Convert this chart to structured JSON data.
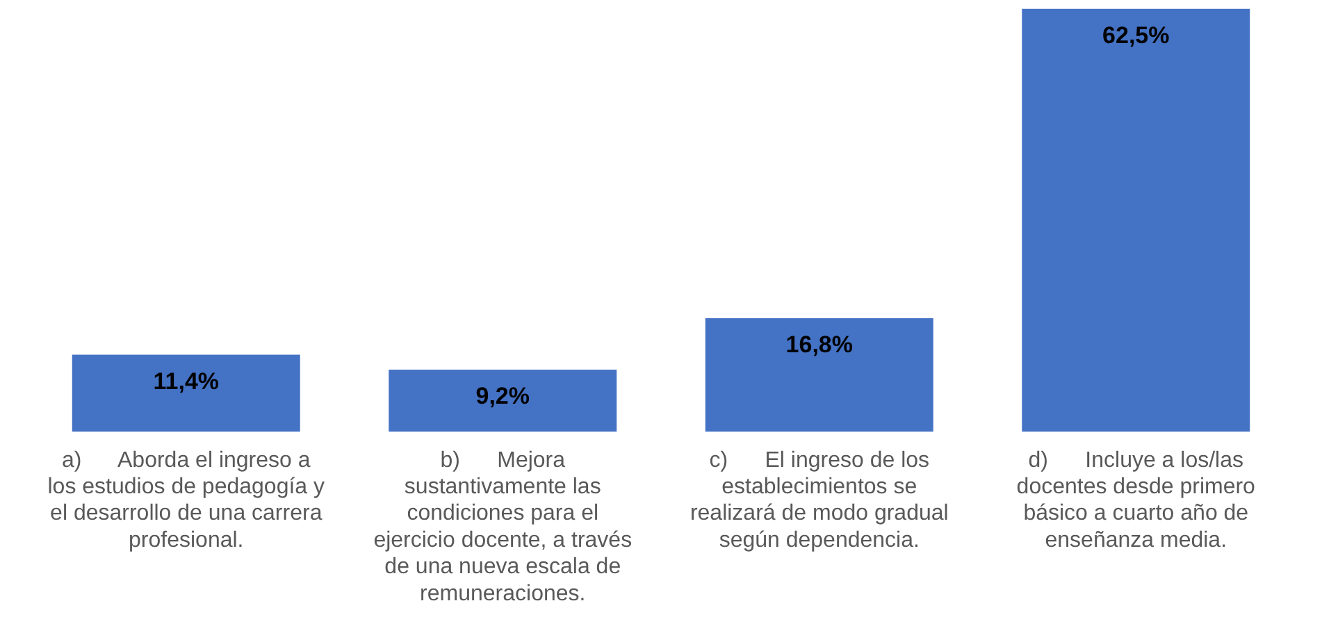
{
  "chart_data": {
    "type": "bar",
    "categories": [
      "a)      Aborda el ingreso a los estudios de pedagogía y el desarrollo de una carrera profesional.",
      "b)      Mejora sustantivamente las condiciones para el ejercicio docente, a través de una nueva escala de remuneraciones.",
      "c)      El ingreso de los establecimientos se realizará de modo gradual según dependencia.",
      "d)      Incluye a los/las docentes desde primero básico a cuarto año de enseñanza media."
    ],
    "values": [
      11.4,
      9.2,
      16.8,
      62.5
    ],
    "value_labels": [
      "11,4%",
      "9,2%",
      "16,8%",
      "62,5%"
    ],
    "color": "#4472c4",
    "ylim": [
      0,
      63
    ],
    "tick_labels": "x",
    "legend": false
  }
}
